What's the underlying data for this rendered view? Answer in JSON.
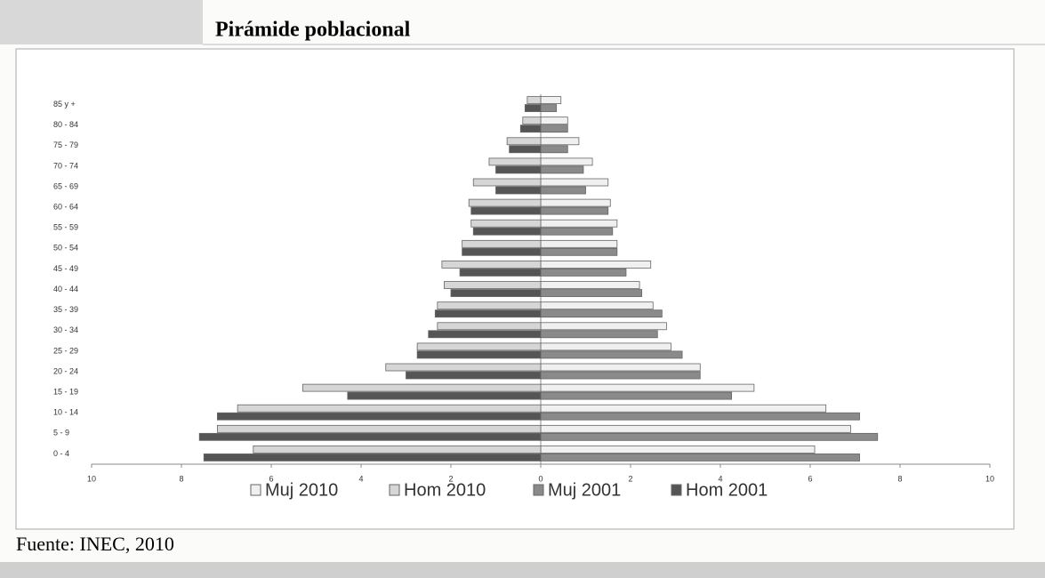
{
  "chart_data": {
    "type": "pyramid",
    "title": "Pirámide poblacional",
    "source": "Fuente: INEC, 2010",
    "categories": [
      "85 y +",
      "80 - 84",
      "75 - 79",
      "70 - 74",
      "65 - 69",
      "60 - 64",
      "55 - 59",
      "50 - 54",
      "45 - 49",
      "40 - 44",
      "35 - 39",
      "30 - 34",
      "25 - 29",
      "20 - 24",
      "15 - 19",
      "10 - 14",
      "5 - 9",
      "0 - 4"
    ],
    "series": [
      {
        "name": "Muj 2010",
        "color": "#f0f0f0",
        "values": [
          0.45,
          0.6,
          0.85,
          1.15,
          1.5,
          1.55,
          1.7,
          1.7,
          2.45,
          2.2,
          2.5,
          2.8,
          2.9,
          3.55,
          4.75,
          6.35,
          6.9,
          6.1
        ]
      },
      {
        "name": "Hom 2010",
        "color": "#d6d6d6",
        "values": [
          -0.3,
          -0.4,
          -0.75,
          -1.15,
          -1.5,
          -1.6,
          -1.55,
          -1.75,
          -2.2,
          -2.15,
          -2.3,
          -2.3,
          -2.75,
          -3.45,
          -5.3,
          -6.75,
          -7.2,
          -6.4
        ]
      },
      {
        "name": "Muj 2001",
        "color": "#8a8a8a",
        "values": [
          0.35,
          0.6,
          0.6,
          0.95,
          1.0,
          1.5,
          1.6,
          1.7,
          1.9,
          2.25,
          2.7,
          2.6,
          3.15,
          3.55,
          4.25,
          7.1,
          7.5,
          7.1
        ]
      },
      {
        "name": "Hom 2001",
        "color": "#555555",
        "values": [
          -0.35,
          -0.45,
          -0.7,
          -1.0,
          -1.0,
          -1.55,
          -1.5,
          -1.75,
          -1.8,
          -2.0,
          -2.35,
          -2.5,
          -2.75,
          -3.0,
          -4.3,
          -7.2,
          -7.6,
          -7.5
        ]
      }
    ],
    "xlim": [
      -10,
      10
    ],
    "xticks": [
      {
        "value": -10,
        "label": "10"
      },
      {
        "value": -8,
        "label": "8"
      },
      {
        "value": -6,
        "label": "6"
      },
      {
        "value": -4,
        "label": "4"
      },
      {
        "value": -2,
        "label": "2"
      },
      0,
      2,
      4,
      6,
      8,
      10
    ],
    "grid": false,
    "legend": "bottom"
  }
}
